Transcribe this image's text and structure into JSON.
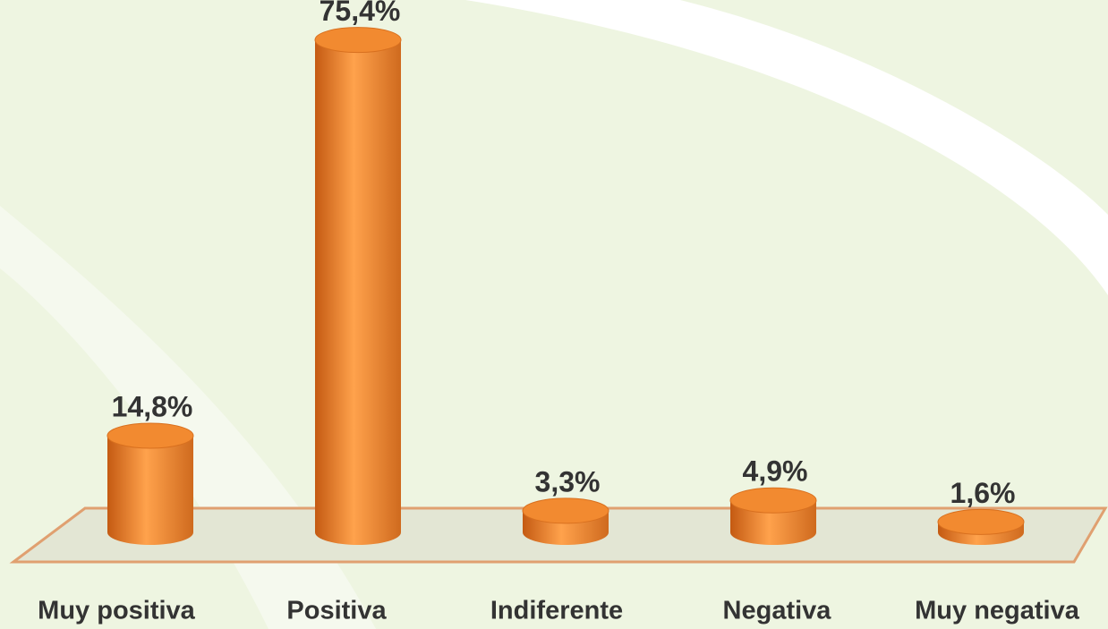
{
  "chart_data": {
    "type": "bar",
    "categories": [
      "Muy positiva",
      "Positiva",
      "Indiferente",
      "Negativa",
      "Muy negativa"
    ],
    "values": [
      14.8,
      75.4,
      3.3,
      4.9,
      1.6
    ],
    "value_labels": [
      "14,8%",
      "75,4%",
      "3,3%",
      "4,9%",
      "1,6%"
    ],
    "color": "#f28a30"
  }
}
